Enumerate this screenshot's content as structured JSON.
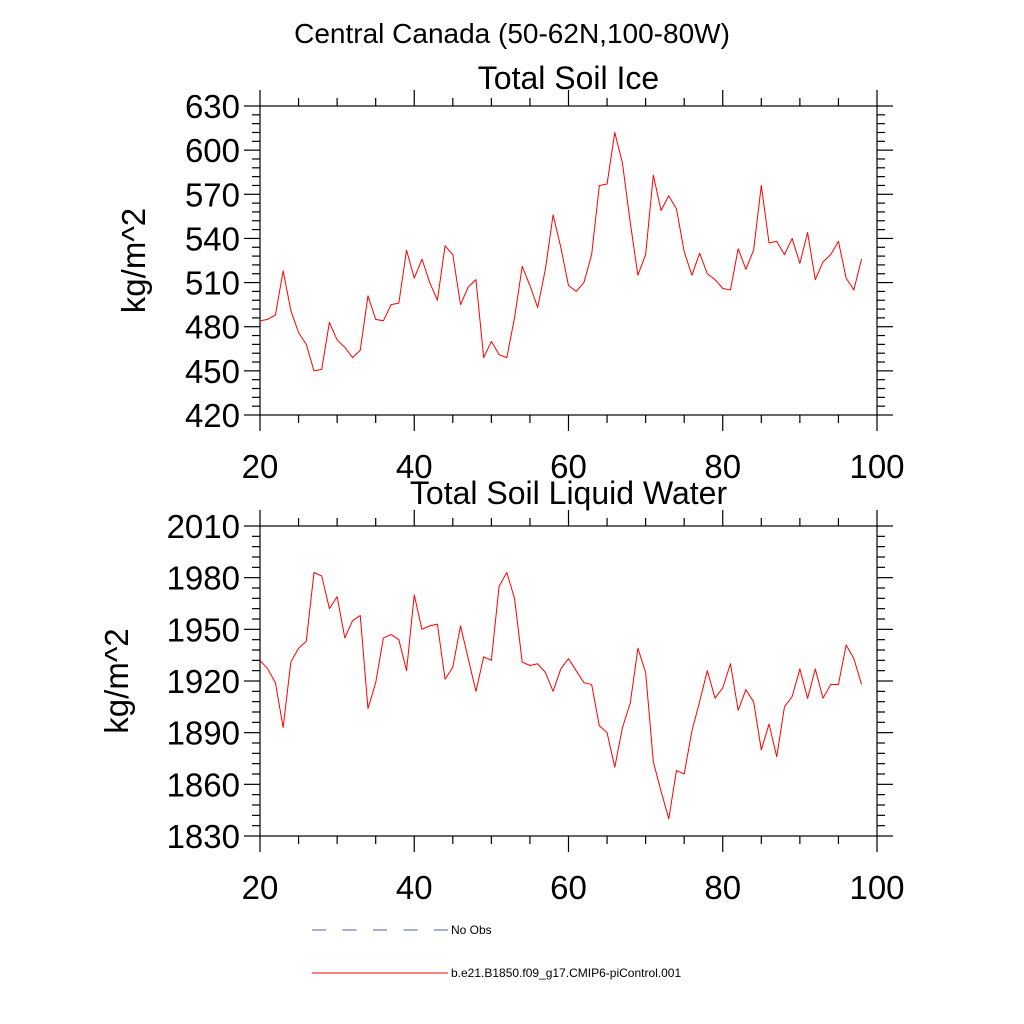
{
  "figure": {
    "title": "Central Canada (50-62N,100-80W)"
  },
  "legend": {
    "items": [
      {
        "label": "No Obs",
        "color": "#56608f"
      },
      {
        "label": "b.e21.B1850.f09_g17.CMIP6-piControl.001",
        "color": "#ff0000"
      }
    ]
  },
  "chart_data": [
    {
      "type": "line",
      "title": "Total Soil Ice",
      "ylabel": "kg/m^2",
      "xlim": [
        20,
        100
      ],
      "ylim": [
        420,
        630
      ],
      "xticks": [
        20,
        40,
        60,
        80,
        100
      ],
      "yticks": [
        420,
        450,
        480,
        510,
        540,
        570,
        600,
        630
      ],
      "grid": false,
      "x": [
        20,
        21,
        22,
        23,
        24,
        25,
        26,
        27,
        28,
        29,
        30,
        31,
        32,
        33,
        34,
        35,
        36,
        37,
        38,
        39,
        40,
        41,
        42,
        43,
        44,
        45,
        46,
        47,
        48,
        49,
        50,
        51,
        52,
        53,
        54,
        55,
        56,
        57,
        58,
        59,
        60,
        61,
        62,
        63,
        64,
        65,
        66,
        67,
        68,
        69,
        70,
        71,
        72,
        73,
        74,
        75,
        76,
        77,
        78,
        79,
        80,
        81,
        82,
        83,
        84,
        85,
        86,
        87,
        88,
        89,
        90,
        91,
        92,
        93,
        94,
        95,
        96,
        97,
        98
      ],
      "series": [
        {
          "color": "#ff0000",
          "values": [
            484,
            485,
            488,
            518,
            491,
            476,
            468,
            450,
            451,
            483,
            471,
            466,
            459,
            464,
            501,
            485,
            484,
            495,
            496,
            532,
            513,
            526,
            510,
            498,
            535,
            529,
            495,
            507,
            512,
            459,
            470,
            461,
            459,
            486,
            521,
            508,
            493,
            519,
            556,
            534,
            508,
            504,
            510,
            529,
            576,
            577,
            612,
            591,
            551,
            515,
            529,
            583,
            559,
            569,
            560,
            531,
            515,
            530,
            516,
            512,
            506,
            505,
            533,
            519,
            532,
            576,
            537,
            538,
            529,
            540,
            523,
            544,
            512,
            524,
            529,
            538,
            513,
            505,
            526
          ]
        }
      ]
    },
    {
      "type": "line",
      "title": "Total Soil Liquid Water",
      "ylabel": "kg/m^2",
      "xlim": [
        20,
        100
      ],
      "ylim": [
        1830,
        2010
      ],
      "xticks": [
        20,
        40,
        60,
        80,
        100
      ],
      "yticks": [
        1830,
        1860,
        1890,
        1920,
        1950,
        1980,
        2010
      ],
      "grid": false,
      "x": [
        20,
        21,
        22,
        23,
        24,
        25,
        26,
        27,
        28,
        29,
        30,
        31,
        32,
        33,
        34,
        35,
        36,
        37,
        38,
        39,
        40,
        41,
        42,
        43,
        44,
        45,
        46,
        47,
        48,
        49,
        50,
        51,
        52,
        53,
        54,
        55,
        56,
        57,
        58,
        59,
        60,
        61,
        62,
        63,
        64,
        65,
        66,
        67,
        68,
        69,
        70,
        71,
        72,
        73,
        74,
        75,
        76,
        77,
        78,
        79,
        80,
        81,
        82,
        83,
        84,
        85,
        86,
        87,
        88,
        89,
        90,
        91,
        92,
        93,
        94,
        95,
        96,
        97,
        98
      ],
      "series": [
        {
          "color": "#ff0000",
          "values": [
            1932,
            1927,
            1919,
            1893,
            1931,
            1939,
            1943,
            1983,
            1981,
            1962,
            1969,
            1945,
            1955,
            1958,
            1904,
            1919,
            1945,
            1947,
            1944,
            1926,
            1970,
            1950,
            1952,
            1953,
            1921,
            1928,
            1952,
            1933,
            1914,
            1934,
            1932,
            1975,
            1983,
            1968,
            1931,
            1929,
            1930,
            1925,
            1914,
            1927,
            1933,
            1926,
            1919,
            1918,
            1894,
            1890,
            1870,
            1893,
            1907,
            1939,
            1925,
            1873,
            1856,
            1840,
            1868,
            1866,
            1891,
            1908,
            1926,
            1910,
            1916,
            1930,
            1903,
            1915,
            1908,
            1880,
            1895,
            1876,
            1905,
            1911,
            1927,
            1910,
            1927,
            1910,
            1918,
            1918,
            1941,
            1933,
            1918
          ]
        }
      ]
    }
  ]
}
